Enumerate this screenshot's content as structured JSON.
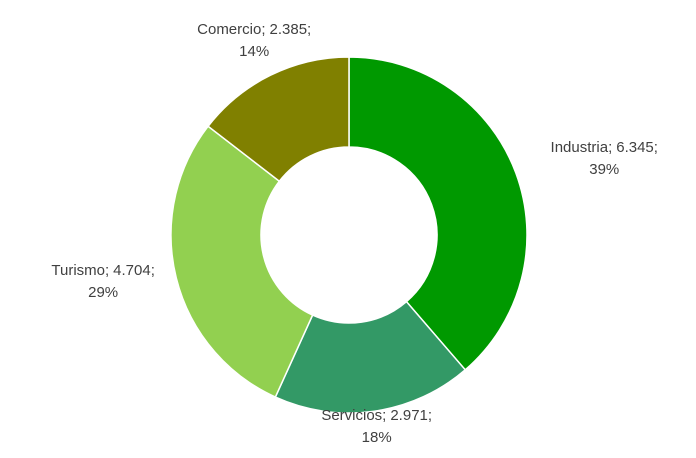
{
  "chart_data": {
    "type": "donut",
    "categories": [
      "Industria;",
      "Servicios;",
      "Turismo;",
      "Comercio;"
    ],
    "values": [
      6345,
      2971,
      4704,
      2385
    ],
    "value_labels": [
      "6.345;",
      "2.971;",
      "4.704;",
      "2.385;"
    ],
    "percents": [
      39,
      18,
      29,
      14
    ],
    "percent_labels": [
      "39%",
      "18%",
      "29%",
      "14%"
    ],
    "colors": [
      "#009900",
      "#339966",
      "#92d050",
      "#808000"
    ]
  }
}
